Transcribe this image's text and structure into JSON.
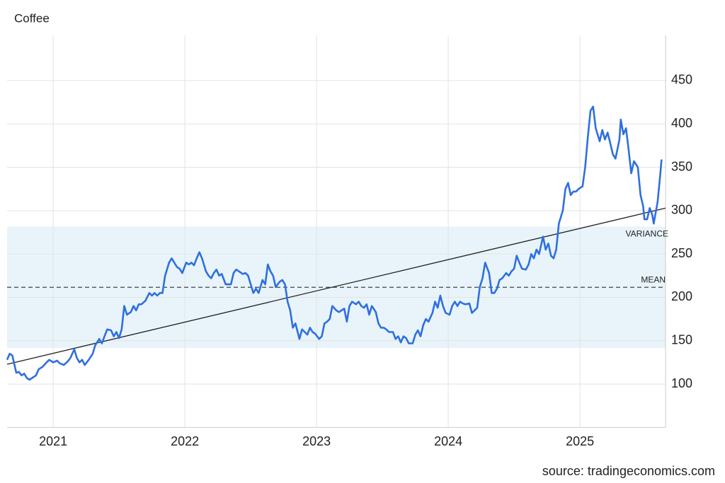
{
  "chart_data": {
    "type": "line",
    "title": "Coffee",
    "source": "source: tradingeconomics.com",
    "color": "#2f6fe0",
    "x": [
      2020.65,
      2020.67,
      2020.69,
      2020.72,
      2020.74,
      2020.76,
      2020.78,
      2020.8,
      2020.82,
      2020.84,
      2020.87,
      2020.89,
      2020.92,
      2020.95,
      2020.97,
      2021.0,
      2021.03,
      2021.05,
      2021.08,
      2021.11,
      2021.13,
      2021.16,
      2021.18,
      2021.2,
      2021.22,
      2021.24,
      2021.27,
      2021.3,
      2021.32,
      2021.35,
      2021.37,
      2021.39,
      2021.41,
      2021.44,
      2021.46,
      2021.48,
      2021.5,
      2021.52,
      2021.54,
      2021.56,
      2021.59,
      2021.61,
      2021.63,
      2021.65,
      2021.67,
      2021.7,
      2021.73,
      2021.75,
      2021.77,
      2021.79,
      2021.81,
      2021.83,
      2021.85,
      2021.88,
      2021.9,
      2021.92,
      2021.94,
      2021.96,
      2021.98,
      2022.01,
      2022.03,
      2022.05,
      2022.07,
      2022.09,
      2022.11,
      2022.13,
      2022.16,
      2022.18,
      2022.2,
      2022.22,
      2022.24,
      2022.26,
      2022.28,
      2022.31,
      2022.33,
      2022.35,
      2022.37,
      2022.39,
      2022.41,
      2022.44,
      2022.46,
      2022.48,
      2022.5,
      2022.52,
      2022.54,
      2022.56,
      2022.59,
      2022.61,
      2022.63,
      2022.65,
      2022.67,
      2022.69,
      2022.72,
      2022.74,
      2022.76,
      2022.78,
      2022.8,
      2022.82,
      2022.84,
      2022.87,
      2022.89,
      2022.91,
      2022.93,
      2022.95,
      2022.97,
      2022.99,
      2023.02,
      2023.04,
      2023.06,
      2023.08,
      2023.1,
      2023.12,
      2023.15,
      2023.17,
      2023.19,
      2023.21,
      2023.23,
      2023.25,
      2023.27,
      2023.3,
      2023.32,
      2023.34,
      2023.36,
      2023.38,
      2023.4,
      2023.42,
      2023.45,
      2023.47,
      2023.49,
      2023.51,
      2023.53,
      2023.55,
      2023.58,
      2023.6,
      2023.62,
      2023.64,
      2023.66,
      2023.68,
      2023.7,
      2023.73,
      2023.75,
      2023.77,
      2023.79,
      2023.81,
      2023.83,
      2023.85,
      2023.88,
      2023.9,
      2023.92,
      2023.94,
      2023.96,
      2023.98,
      2024.01,
      2024.03,
      2024.05,
      2024.07,
      2024.09,
      2024.11,
      2024.13,
      2024.16,
      2024.18,
      2024.2,
      2024.22,
      2024.24,
      2024.26,
      2024.28,
      2024.31,
      2024.33,
      2024.35,
      2024.37,
      2024.39,
      2024.41,
      2024.44,
      2024.46,
      2024.48,
      2024.5,
      2024.52,
      2024.54,
      2024.56,
      2024.59,
      2024.61,
      2024.63,
      2024.65,
      2024.67,
      2024.69,
      2024.72,
      2024.74,
      2024.76,
      2024.78,
      2024.8,
      2024.82,
      2024.84,
      2024.87,
      2024.89,
      2024.91,
      2024.93,
      2024.95,
      2024.97,
      2024.99,
      2025.02,
      2025.04,
      2025.06,
      2025.08,
      2025.1,
      2025.12,
      2025.15,
      2025.17,
      2025.19,
      2025.21,
      2025.23,
      2025.25,
      2025.27,
      2025.3,
      2025.31,
      2025.33,
      2025.35,
      2025.37,
      2025.39,
      2025.41,
      2025.44,
      2025.46,
      2025.48,
      2025.49,
      2025.51,
      2025.53,
      2025.55,
      2025.56,
      2025.59,
      2025.61,
      2025.62
    ],
    "values": [
      128,
      135,
      133,
      113,
      114,
      110,
      112,
      107,
      105,
      107,
      110,
      117,
      120,
      125,
      128,
      125,
      127,
      124,
      122,
      126,
      130,
      140,
      130,
      125,
      128,
      122,
      128,
      135,
      145,
      152,
      147,
      155,
      163,
      162,
      155,
      160,
      153,
      163,
      190,
      180,
      183,
      190,
      185,
      192,
      192,
      196,
      205,
      202,
      205,
      202,
      205,
      205,
      225,
      240,
      245,
      240,
      235,
      233,
      228,
      240,
      238,
      240,
      237,
      245,
      252,
      245,
      230,
      225,
      222,
      228,
      232,
      225,
      227,
      215,
      215,
      215,
      228,
      232,
      230,
      227,
      228,
      225,
      215,
      205,
      210,
      205,
      220,
      215,
      238,
      230,
      225,
      212,
      218,
      220,
      215,
      195,
      185,
      165,
      170,
      152,
      163,
      160,
      157,
      165,
      160,
      158,
      152,
      155,
      170,
      172,
      175,
      190,
      185,
      183,
      185,
      187,
      172,
      190,
      195,
      192,
      195,
      190,
      188,
      192,
      180,
      190,
      183,
      170,
      165,
      165,
      163,
      160,
      160,
      152,
      155,
      148,
      155,
      153,
      147,
      147,
      157,
      162,
      155,
      168,
      175,
      172,
      182,
      195,
      188,
      202,
      190,
      182,
      180,
      190,
      195,
      190,
      195,
      193,
      192,
      193,
      182,
      185,
      188,
      212,
      222,
      240,
      228,
      205,
      205,
      210,
      220,
      222,
      228,
      225,
      230,
      233,
      248,
      240,
      233,
      232,
      238,
      250,
      245,
      255,
      250,
      270,
      255,
      262,
      248,
      245,
      255,
      285,
      300,
      325,
      332,
      318,
      322,
      322,
      325,
      328,
      350,
      385,
      415,
      420,
      395,
      380,
      393,
      382,
      390,
      378,
      365,
      360,
      382,
      405,
      388,
      395,
      370,
      343,
      357,
      350,
      318,
      305,
      290,
      290,
      303,
      295,
      285,
      310,
      342,
      359
    ],
    "trend": {
      "x": [
        2020.65,
        2025.65
      ],
      "values": [
        122.8,
        302.9
      ]
    },
    "band": {
      "label": "VARIANCE",
      "range": [
        141.5,
        281.6
      ]
    },
    "mean": {
      "label": "MEAN",
      "value": 211.6
    },
    "xlim": [
      2020.65,
      2025.65
    ],
    "xticks": [
      2021,
      2022,
      2023,
      2024,
      2025
    ],
    "ylim": [
      50,
      500
    ],
    "yticks": [
      100,
      150,
      200,
      250,
      300,
      350,
      400,
      450
    ],
    "grid": true
  }
}
